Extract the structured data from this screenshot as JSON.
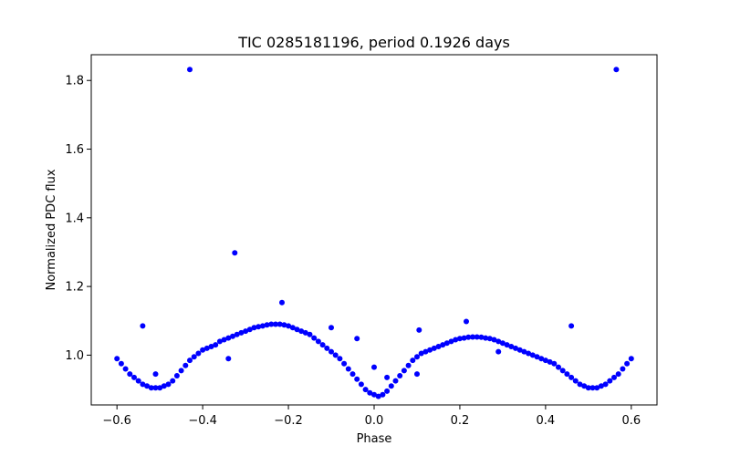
{
  "chart_data": {
    "type": "scatter",
    "title": "TIC 0285181196, period 0.1926 days",
    "xlabel": "Phase",
    "ylabel": "Normalized PDC flux",
    "xlim": [
      -0.66,
      0.66
    ],
    "ylim": [
      0.855,
      1.875
    ],
    "xticks": [
      -0.6,
      -0.4,
      -0.2,
      0.0,
      0.2,
      0.4,
      0.6
    ],
    "xtick_labels": [
      "−0.6",
      "−0.4",
      "−0.2",
      "0.0",
      "0.2",
      "0.4",
      "0.6"
    ],
    "yticks": [
      1.0,
      1.2,
      1.4,
      1.6,
      1.8
    ],
    "ytick_labels": [
      "1.0",
      "1.2",
      "1.4",
      "1.6",
      "1.8"
    ],
    "grid": false,
    "marker_color": "#0000ff",
    "series": [
      {
        "values": [
          [
            -0.6,
            0.99
          ],
          [
            -0.59,
            0.975
          ],
          [
            -0.58,
            0.96
          ],
          [
            -0.57,
            0.945
          ],
          [
            -0.56,
            0.935
          ],
          [
            -0.55,
            0.925
          ],
          [
            -0.54,
            0.915
          ],
          [
            -0.53,
            0.91
          ],
          [
            -0.52,
            0.905
          ],
          [
            -0.51,
            0.905
          ],
          [
            -0.5,
            0.905
          ],
          [
            -0.49,
            0.91
          ],
          [
            -0.48,
            0.915
          ],
          [
            -0.47,
            0.925
          ],
          [
            -0.46,
            0.94
          ],
          [
            -0.45,
            0.955
          ],
          [
            -0.44,
            0.97
          ],
          [
            -0.43,
            0.985
          ],
          [
            -0.42,
            0.995
          ],
          [
            -0.41,
            1.005
          ],
          [
            -0.4,
            1.015
          ],
          [
            -0.39,
            1.02
          ],
          [
            -0.38,
            1.025
          ],
          [
            -0.37,
            1.03
          ],
          [
            -0.36,
            1.04
          ],
          [
            -0.35,
            1.045
          ],
          [
            -0.34,
            1.05
          ],
          [
            -0.33,
            1.055
          ],
          [
            -0.32,
            1.06
          ],
          [
            -0.31,
            1.065
          ],
          [
            -0.3,
            1.07
          ],
          [
            -0.29,
            1.075
          ],
          [
            -0.28,
            1.08
          ],
          [
            -0.27,
            1.083
          ],
          [
            -0.26,
            1.085
          ],
          [
            -0.25,
            1.088
          ],
          [
            -0.24,
            1.09
          ],
          [
            -0.23,
            1.09
          ],
          [
            -0.22,
            1.09
          ],
          [
            -0.21,
            1.088
          ],
          [
            -0.2,
            1.085
          ],
          [
            -0.19,
            1.08
          ],
          [
            -0.18,
            1.075
          ],
          [
            -0.17,
            1.07
          ],
          [
            -0.16,
            1.065
          ],
          [
            -0.15,
            1.06
          ],
          [
            -0.14,
            1.05
          ],
          [
            -0.13,
            1.04
          ],
          [
            -0.12,
            1.03
          ],
          [
            -0.11,
            1.02
          ],
          [
            -0.1,
            1.01
          ],
          [
            -0.09,
            1.0
          ],
          [
            -0.08,
            0.99
          ],
          [
            -0.07,
            0.975
          ],
          [
            -0.06,
            0.96
          ],
          [
            -0.05,
            0.945
          ],
          [
            -0.04,
            0.93
          ],
          [
            -0.03,
            0.915
          ],
          [
            -0.02,
            0.9
          ],
          [
            -0.01,
            0.89
          ],
          [
            0.0,
            0.885
          ],
          [
            0.01,
            0.88
          ],
          [
            0.02,
            0.885
          ],
          [
            0.03,
            0.895
          ],
          [
            0.04,
            0.91
          ],
          [
            0.05,
            0.925
          ],
          [
            0.06,
            0.94
          ],
          [
            0.07,
            0.955
          ],
          [
            0.08,
            0.97
          ],
          [
            0.09,
            0.985
          ],
          [
            0.1,
            0.995
          ],
          [
            0.11,
            1.005
          ],
          [
            0.12,
            1.01
          ],
          [
            0.13,
            1.015
          ],
          [
            0.14,
            1.02
          ],
          [
            0.15,
            1.025
          ],
          [
            0.16,
            1.03
          ],
          [
            0.17,
            1.035
          ],
          [
            0.18,
            1.04
          ],
          [
            0.19,
            1.045
          ],
          [
            0.2,
            1.048
          ],
          [
            0.21,
            1.05
          ],
          [
            0.22,
            1.052
          ],
          [
            0.23,
            1.053
          ],
          [
            0.24,
            1.053
          ],
          [
            0.25,
            1.052
          ],
          [
            0.26,
            1.05
          ],
          [
            0.27,
            1.048
          ],
          [
            0.28,
            1.045
          ],
          [
            0.29,
            1.04
          ],
          [
            0.3,
            1.035
          ],
          [
            0.31,
            1.03
          ],
          [
            0.32,
            1.025
          ],
          [
            0.33,
            1.02
          ],
          [
            0.34,
            1.015
          ],
          [
            0.35,
            1.01
          ],
          [
            0.36,
            1.005
          ],
          [
            0.37,
            1.0
          ],
          [
            0.38,
            0.995
          ],
          [
            0.39,
            0.99
          ],
          [
            0.4,
            0.985
          ],
          [
            0.41,
            0.98
          ],
          [
            0.42,
            0.975
          ],
          [
            0.43,
            0.965
          ],
          [
            0.44,
            0.955
          ],
          [
            0.45,
            0.945
          ],
          [
            0.46,
            0.935
          ],
          [
            0.47,
            0.925
          ],
          [
            0.48,
            0.915
          ],
          [
            0.49,
            0.91
          ],
          [
            0.5,
            0.905
          ],
          [
            0.51,
            0.905
          ],
          [
            0.52,
            0.905
          ],
          [
            0.53,
            0.91
          ],
          [
            0.54,
            0.915
          ],
          [
            0.55,
            0.925
          ],
          [
            0.56,
            0.935
          ],
          [
            0.57,
            0.945
          ],
          [
            0.58,
            0.96
          ],
          [
            0.59,
            0.975
          ],
          [
            0.6,
            0.99
          ],
          [
            -0.43,
            1.832
          ],
          [
            0.565,
            1.832
          ],
          [
            -0.325,
            1.298
          ],
          [
            -0.215,
            1.153
          ],
          [
            -0.54,
            1.085
          ],
          [
            0.46,
            1.085
          ],
          [
            0.215,
            1.098
          ],
          [
            0.105,
            1.073
          ],
          [
            -0.1,
            1.08
          ],
          [
            -0.04,
            1.048
          ],
          [
            0.0,
            0.965
          ],
          [
            0.03,
            0.935
          ],
          [
            0.1,
            0.945
          ],
          [
            0.29,
            1.01
          ],
          [
            -0.51,
            0.945
          ],
          [
            -0.34,
            0.99
          ]
        ]
      }
    ]
  }
}
